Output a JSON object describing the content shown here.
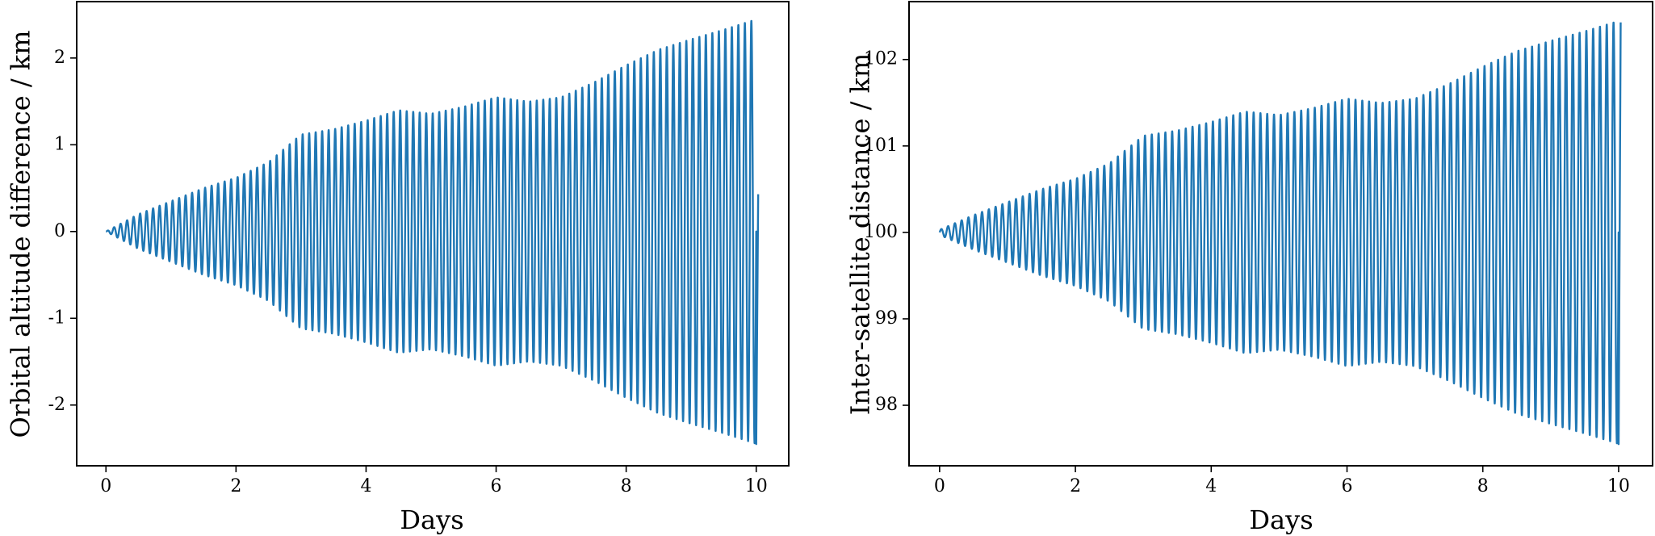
{
  "chart_data": [
    {
      "type": "line",
      "title": "",
      "xlabel": "Days",
      "ylabel": "Orbital altitude difference / km",
      "xlim": [
        -0.45,
        10.5
      ],
      "ylim": [
        -2.7,
        2.65
      ],
      "xticks": [
        0,
        2,
        4,
        6,
        8,
        10
      ],
      "xtick_labels": [
        "0",
        "2",
        "4",
        "6",
        "8",
        "10"
      ],
      "yticks": [
        -2,
        -1,
        0,
        1,
        2
      ],
      "ytick_labels": [
        "-2",
        "-1",
        "0",
        "1",
        "2"
      ],
      "grid": false,
      "series": [
        {
          "color": "#1f77b4",
          "oscillation_period_days": 0.1,
          "center": 0,
          "final_value": 0.43,
          "envelope": {
            "x": [
              0,
              0.5,
              1,
              1.5,
              2,
              2.5,
              3,
              3.5,
              4,
              4.5,
              5,
              5.5,
              6,
              6.5,
              7,
              7.5,
              8,
              8.5,
              9,
              9.5,
              10
            ],
            "amplitude": [
              0.0,
              0.2,
              0.35,
              0.5,
              0.62,
              0.8,
              1.12,
              1.18,
              1.28,
              1.4,
              1.36,
              1.44,
              1.55,
              1.5,
              1.55,
              1.72,
              1.92,
              2.1,
              2.22,
              2.33,
              2.45
            ]
          }
        }
      ]
    },
    {
      "type": "line",
      "title": "",
      "xlabel": "Days",
      "ylabel": "Inter-satellite distance / km",
      "xlim": [
        -0.45,
        10.5
      ],
      "ylim": [
        97.3,
        102.67
      ],
      "xticks": [
        0,
        2,
        4,
        6,
        8,
        10
      ],
      "xtick_labels": [
        "0",
        "2",
        "4",
        "6",
        "8",
        "10"
      ],
      "yticks": [
        98,
        99,
        100,
        101,
        102
      ],
      "ytick_labels": [
        "98",
        "99",
        "100",
        "101",
        "102"
      ],
      "grid": false,
      "series": [
        {
          "color": "#1f77b4",
          "oscillation_period_days": 0.1,
          "center": 100.0,
          "final_value": 102.43,
          "envelope": {
            "x": [
              0,
              0.5,
              1,
              1.5,
              2,
              2.5,
              3,
              3.5,
              4,
              4.5,
              5,
              5.5,
              6,
              6.5,
              7,
              7.5,
              8,
              8.5,
              9,
              9.5,
              10
            ],
            "amplitude": [
              0.03,
              0.2,
              0.35,
              0.5,
              0.62,
              0.8,
              1.12,
              1.18,
              1.28,
              1.4,
              1.36,
              1.44,
              1.55,
              1.5,
              1.55,
              1.72,
              1.92,
              2.1,
              2.22,
              2.33,
              2.45
            ]
          }
        }
      ]
    }
  ]
}
